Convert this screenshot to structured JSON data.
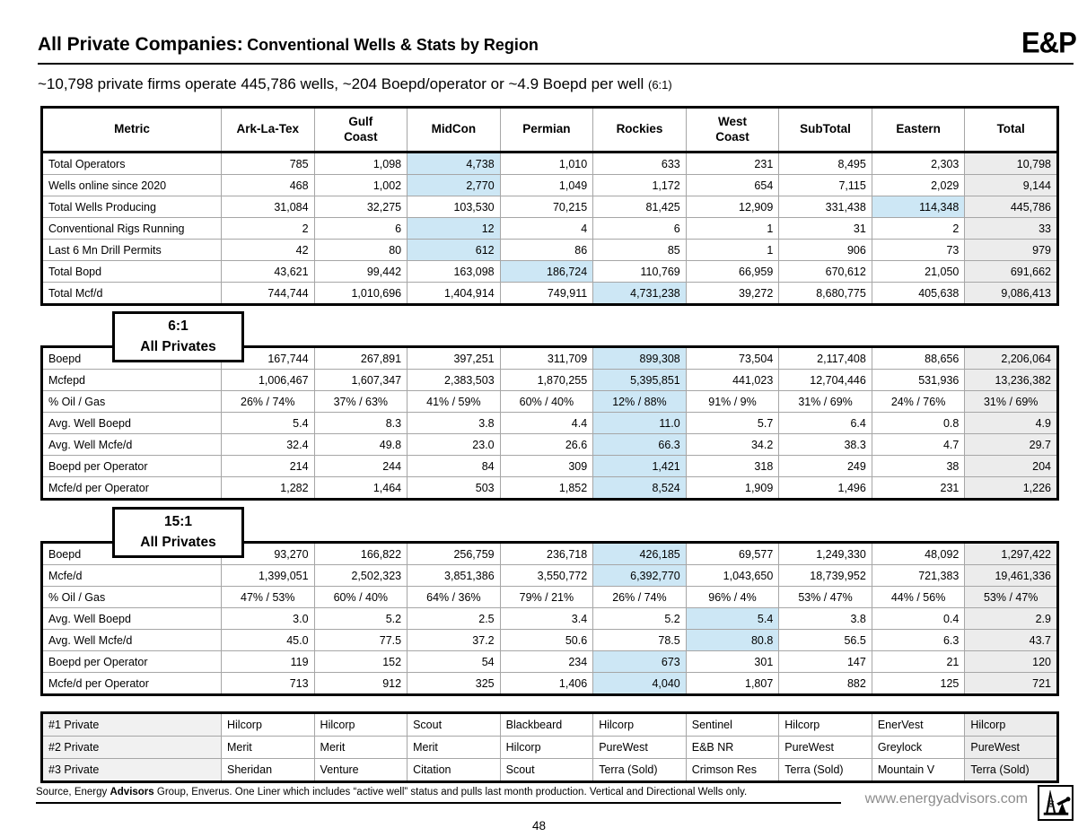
{
  "page": {
    "number": "48"
  },
  "header": {
    "title_main": "All Private Companies:",
    "title_sub": "Conventional Wells & Stats by Region",
    "brand": "E&P"
  },
  "subtitle": {
    "text": "~10,798 private firms operate 445,786 wells, ~204 Boepd/operator or ~4.9 Boepd per well",
    "note": "(6:1)"
  },
  "columns": [
    "Metric",
    "Ark-La-Tex",
    "Gulf\nCoast",
    "MidCon",
    "Permian",
    "Rockies",
    "West\nCoast",
    "SubTotal",
    "Eastern",
    "Total"
  ],
  "callouts": {
    "six": {
      "line1": "6:1",
      "line2": "All Privates"
    },
    "fifteen": {
      "line1": "15:1",
      "line2": "All Privates"
    }
  },
  "colors": {
    "highlight": "#cde7f5",
    "total_column": "#ececec",
    "grid_line": "#a6a6a6"
  },
  "tables": {
    "region_stats": {
      "rows": [
        {
          "label": "Total Operators",
          "values": [
            "785",
            "1,098",
            "4,738",
            "1,010",
            "633",
            "231",
            "8,495",
            "2,303",
            "10,798"
          ],
          "hl": [
            2
          ],
          "align": "right"
        },
        {
          "label": "Wells online since 2020",
          "values": [
            "468",
            "1,002",
            "2,770",
            "1,049",
            "1,172",
            "654",
            "7,115",
            "2,029",
            "9,144"
          ],
          "hl": [
            2
          ],
          "align": "right"
        },
        {
          "label": "Total Wells Producing",
          "values": [
            "31,084",
            "32,275",
            "103,530",
            "70,215",
            "81,425",
            "12,909",
            "331,438",
            "114,348",
            "445,786"
          ],
          "hl": [
            7
          ],
          "align": "right"
        },
        {
          "label": "Conventional Rigs Running",
          "values": [
            "2",
            "6",
            "12",
            "4",
            "6",
            "1",
            "31",
            "2",
            "33"
          ],
          "hl": [
            2
          ],
          "align": "right"
        },
        {
          "label": "Last 6 Mn Drill Permits",
          "values": [
            "42",
            "80",
            "612",
            "86",
            "85",
            "1",
            "906",
            "73",
            "979"
          ],
          "hl": [
            2
          ],
          "align": "right"
        },
        {
          "label": "Total Bopd",
          "values": [
            "43,621",
            "99,442",
            "163,098",
            "186,724",
            "110,769",
            "66,959",
            "670,612",
            "21,050",
            "691,662"
          ],
          "hl": [
            3
          ],
          "align": "right"
        },
        {
          "label": "Total Mcf/d",
          "values": [
            "744,744",
            "1,010,696",
            "1,404,914",
            "749,911",
            "4,731,238",
            "39,272",
            "8,680,775",
            "405,638",
            "9,086,413"
          ],
          "hl": [
            4
          ],
          "align": "right"
        }
      ]
    },
    "six_to_one": {
      "rows": [
        {
          "label": "Boepd",
          "values": [
            "167,744",
            "267,891",
            "397,251",
            "311,709",
            "899,308",
            "73,504",
            "2,117,408",
            "88,656",
            "2,206,064"
          ],
          "hl": [
            4
          ],
          "align": "right"
        },
        {
          "label": "Mcfepd",
          "values": [
            "1,006,467",
            "1,607,347",
            "2,383,503",
            "1,870,255",
            "5,395,851",
            "441,023",
            "12,704,446",
            "531,936",
            "13,236,382"
          ],
          "hl": [
            4
          ],
          "align": "right"
        },
        {
          "label": "% Oil / Gas",
          "values": [
            "26% / 74%",
            "37% / 63%",
            "41% / 59%",
            "60% / 40%",
            "12% / 88%",
            "91% / 9%",
            "31% / 69%",
            "24% / 76%",
            "31% / 69%"
          ],
          "hl": [
            4
          ],
          "align": "center"
        },
        {
          "label": "Avg. Well Boepd",
          "values": [
            "5.4",
            "8.3",
            "3.8",
            "4.4",
            "11.0",
            "5.7",
            "6.4",
            "0.8",
            "4.9"
          ],
          "hl": [
            4
          ],
          "align": "right"
        },
        {
          "label": "Avg. Well Mcfe/d",
          "values": [
            "32.4",
            "49.8",
            "23.0",
            "26.6",
            "66.3",
            "34.2",
            "38.3",
            "4.7",
            "29.7"
          ],
          "hl": [
            4
          ],
          "align": "right"
        },
        {
          "label": "Boepd per Operator",
          "values": [
            "214",
            "244",
            "84",
            "309",
            "1,421",
            "318",
            "249",
            "38",
            "204"
          ],
          "hl": [
            4
          ],
          "align": "right"
        },
        {
          "label": "Mcfe/d per Operator",
          "values": [
            "1,282",
            "1,464",
            "503",
            "1,852",
            "8,524",
            "1,909",
            "1,496",
            "231",
            "1,226"
          ],
          "hl": [
            4
          ],
          "align": "right"
        }
      ]
    },
    "fifteen_to_one": {
      "rows": [
        {
          "label": "Boepd",
          "values": [
            "93,270",
            "166,822",
            "256,759",
            "236,718",
            "426,185",
            "69,577",
            "1,249,330",
            "48,092",
            "1,297,422"
          ],
          "hl": [
            4
          ],
          "align": "right"
        },
        {
          "label": "Mcfe/d",
          "values": [
            "1,399,051",
            "2,502,323",
            "3,851,386",
            "3,550,772",
            "6,392,770",
            "1,043,650",
            "18,739,952",
            "721,383",
            "19,461,336"
          ],
          "hl": [
            4
          ],
          "align": "right"
        },
        {
          "label": "% Oil / Gas",
          "values": [
            "47% / 53%",
            "60% / 40%",
            "64% / 36%",
            "79% / 21%",
            "26% / 74%",
            "96% / 4%",
            "53% / 47%",
            "44% / 56%",
            "53% / 47%"
          ],
          "hl": [],
          "align": "center"
        },
        {
          "label": "Avg. Well Boepd",
          "values": [
            "3.0",
            "5.2",
            "2.5",
            "3.4",
            "5.2",
            "5.4",
            "3.8",
            "0.4",
            "2.9"
          ],
          "hl": [
            5
          ],
          "align": "right"
        },
        {
          "label": "Avg. Well Mcfe/d",
          "values": [
            "45.0",
            "77.5",
            "37.2",
            "50.6",
            "78.5",
            "80.8",
            "56.5",
            "6.3",
            "43.7"
          ],
          "hl": [
            5
          ],
          "align": "right"
        },
        {
          "label": "Boepd per Operator",
          "values": [
            "119",
            "152",
            "54",
            "234",
            "673",
            "301",
            "147",
            "21",
            "120"
          ],
          "hl": [
            4
          ],
          "align": "right"
        },
        {
          "label": "Mcfe/d per Operator",
          "values": [
            "713",
            "912",
            "325",
            "1,406",
            "4,040",
            "1,807",
            "882",
            "125",
            "721"
          ],
          "hl": [
            4
          ],
          "align": "right"
        }
      ]
    },
    "top_privates": {
      "rows": [
        {
          "label": "#1 Private",
          "values": [
            "Hilcorp",
            "Hilcorp",
            "Scout",
            "Blackbeard",
            "Hilcorp",
            "Sentinel",
            "Hilcorp",
            "EnerVest",
            "Hilcorp"
          ],
          "hl": [],
          "align": "left"
        },
        {
          "label": "#2 Private",
          "values": [
            "Merit",
            "Merit",
            "Merit",
            "Hilcorp",
            "PureWest",
            "E&B NR",
            "PureWest",
            "Greylock",
            "PureWest"
          ],
          "hl": [],
          "align": "left"
        },
        {
          "label": "#3 Private",
          "values": [
            "Sheridan",
            "Venture",
            "Citation",
            "Scout",
            "Terra (Sold)",
            "Crimson Res",
            "Terra (Sold)",
            "Mountain V",
            "Terra (Sold)"
          ],
          "hl": [],
          "align": "left"
        }
      ]
    }
  },
  "footer": {
    "source_prefix": "Source, Energy ",
    "source_bold": "Advisors",
    "source_suffix": " Group, Enverus. One Liner which includes “active well” status and pulls last month production. Vertical and Directional Wells only.",
    "website": "www.energyadvisors.com",
    "logo_icon": "derrick-pumpjack"
  }
}
